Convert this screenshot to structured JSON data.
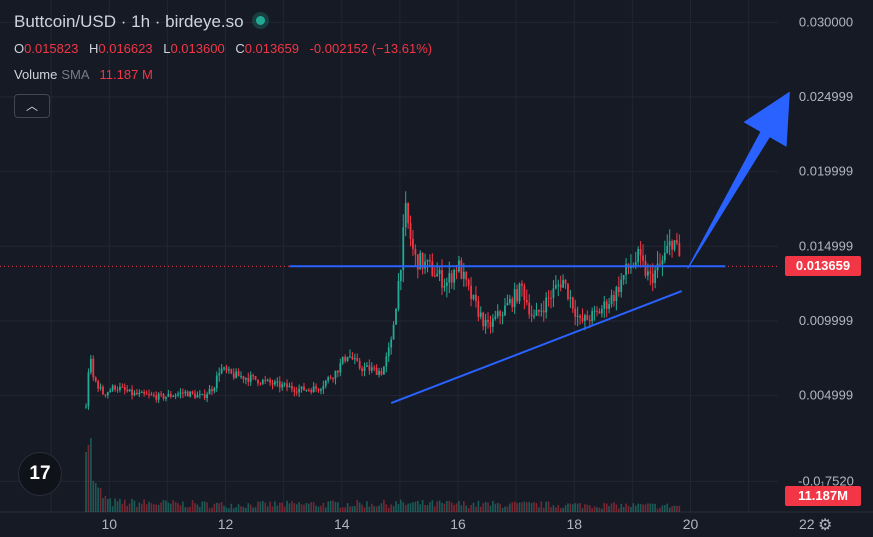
{
  "header": {
    "symbol": "Buttcoin/USD · 1h · birdeye.so"
  },
  "ohlc": {
    "o_label": "O",
    "o": "0.015823",
    "h_label": "H",
    "h": "0.016623",
    "l_label": "L",
    "l": "0.013600",
    "c_label": "C",
    "c": "0.013659",
    "change": "-0.002152 (−13.61%)"
  },
  "volume": {
    "label": "Volume",
    "sma": "SMA",
    "value": "11.187 M"
  },
  "controls": {
    "collapse": "︿"
  },
  "logo": "17",
  "colors": {
    "up": "#22ab94",
    "down": "#f23645",
    "annotation": "#2962ff",
    "background": "#161a25",
    "grid": "#232632"
  },
  "chart_data": {
    "type": "candlestick",
    "symbol": "Buttcoin/USD",
    "interval": "1h",
    "y_ticks": [
      "0.030000",
      "0.024999",
      "0.019999",
      "0.014999",
      "0.009999",
      "0.004999",
      "-0.0₁7520"
    ],
    "y_tick_values": [
      0.03,
      0.024999,
      0.019999,
      0.014999,
      0.009999,
      0.004999,
      -0.000752
    ],
    "ylim": [
      -0.0028,
      0.0315
    ],
    "x_ticks": [
      "10",
      "12",
      "14",
      "16",
      "18",
      "20",
      "22"
    ],
    "x_tick_values": [
      10,
      12,
      14,
      16,
      18,
      20,
      22
    ],
    "xlim": [
      8.12,
      23.14
    ],
    "last_price": "0.013659",
    "volume_label": "11.187M",
    "grid": true,
    "price_path": [
      [
        9.6,
        0.0042
      ],
      [
        9.66,
        0.0078
      ],
      [
        9.72,
        0.0062
      ],
      [
        9.9,
        0.0051
      ],
      [
        10.1,
        0.0056
      ],
      [
        10.4,
        0.0051
      ],
      [
        10.9,
        0.0049
      ],
      [
        11.3,
        0.0052
      ],
      [
        11.6,
        0.0049
      ],
      [
        11.8,
        0.0056
      ],
      [
        11.9,
        0.0068
      ],
      [
        12.1,
        0.0064
      ],
      [
        12.5,
        0.0061
      ],
      [
        12.9,
        0.0057
      ],
      [
        13.3,
        0.0054
      ],
      [
        13.6,
        0.0055
      ],
      [
        13.9,
        0.0066
      ],
      [
        14.1,
        0.0078
      ],
      [
        14.3,
        0.0069
      ],
      [
        14.7,
        0.0066
      ],
      [
        14.85,
        0.0085
      ],
      [
        15.0,
        0.0134
      ],
      [
        15.1,
        0.0172
      ],
      [
        15.25,
        0.0142
      ],
      [
        15.5,
        0.0136
      ],
      [
        15.8,
        0.0125
      ],
      [
        16.0,
        0.0138
      ],
      [
        16.2,
        0.0118
      ],
      [
        16.5,
        0.0095
      ],
      [
        16.8,
        0.0108
      ],
      [
        17.1,
        0.0122
      ],
      [
        17.3,
        0.0101
      ],
      [
        17.5,
        0.0112
      ],
      [
        17.8,
        0.0128
      ],
      [
        18.1,
        0.0099
      ],
      [
        18.4,
        0.0105
      ],
      [
        18.7,
        0.0118
      ],
      [
        18.9,
        0.0134
      ],
      [
        19.1,
        0.0142
      ],
      [
        19.3,
        0.0128
      ],
      [
        19.5,
        0.0138
      ],
      [
        19.7,
        0.0156
      ],
      [
        19.85,
        0.01366
      ]
    ],
    "volume_path": [
      [
        9.6,
        1.0
      ],
      [
        9.65,
        0.65
      ],
      [
        9.75,
        0.2
      ],
      [
        10.0,
        0.08
      ],
      [
        12.0,
        0.06
      ],
      [
        15.0,
        0.07
      ],
      [
        19.9,
        0.05
      ]
    ],
    "annotations": {
      "horizontal_line": {
        "x": [
          13.1,
          20.6
        ],
        "y": 0.01366
      },
      "rising_trendline": {
        "x": [
          14.85,
          19.85
        ],
        "y": [
          0.0045,
          0.012
        ]
      },
      "arrow": {
        "from": [
          19.95,
          0.0135
        ],
        "to": [
          21.7,
          0.0253
        ]
      }
    }
  }
}
